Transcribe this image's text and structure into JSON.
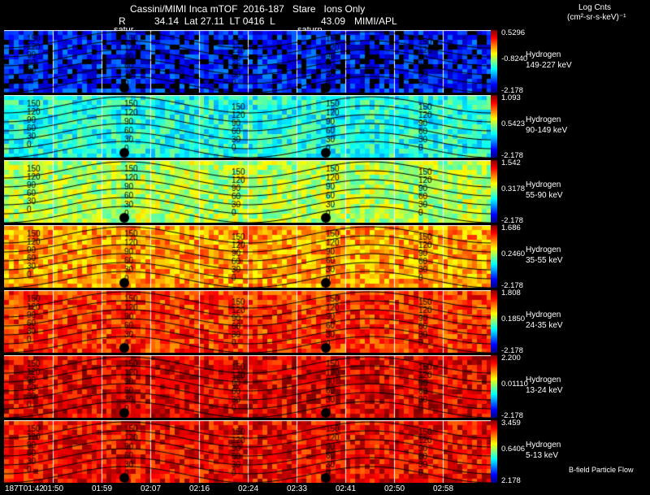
{
  "header": {
    "title": "Cassini/MIMI Inca mTOF  2016-187   Stare   Ions Only",
    "subtitle_r": "R",
    "subtitle_rest": "34.14  Lat 27.11  LT 0416  L",
    "subtitle_l": "43.09",
    "subtitle_inst": "MIMI/APL",
    "units_line1": "Log Cnts",
    "units_line2": "(cm²-sr-s-keV)⁻¹"
  },
  "markers": {
    "saturn1": "satur",
    "saturn2": "saturn"
  },
  "footer": {
    "flow_label": "B-field Particle Flow"
  },
  "time_labels": [
    "187T01:42",
    "01:50",
    "01:59",
    "02:07",
    "02:16",
    "02:24",
    "02:33",
    "02:41",
    "02:50",
    "02:58"
  ],
  "panels": [
    {
      "species": "Hydrogen",
      "energy": "149-227 keV",
      "cmax": "0.5296",
      "cmid": "-0.8240",
      "cmin": "-2.178"
    },
    {
      "species": "Hydrogen",
      "energy": "90-149 keV",
      "cmax": "1.093",
      "cmid": "0.5423",
      "cmin": "-2.178"
    },
    {
      "species": "Hydrogen",
      "energy": "55-90 keV",
      "cmax": "1.542",
      "cmid": "0.3178",
      "cmin": "-2.178"
    },
    {
      "species": "Hydrogen",
      "energy": "35-55 keV",
      "cmax": "1.686",
      "cmid": "0.2460",
      "cmin": "-2.178"
    },
    {
      "species": "Hydrogen",
      "energy": "24-35 keV",
      "cmax": "1.808",
      "cmid": "0.1850",
      "cmin": "-2.178"
    },
    {
      "species": "Hydrogen",
      "energy": "13-24 keV",
      "cmax": "2.200",
      "cmid": "0.01110",
      "cmin": "-2.178"
    },
    {
      "species": "Hydrogen",
      "energy": "5-13 keV",
      "cmax": "3.459",
      "cmid": "0.6406",
      "cmin": "2.178"
    }
  ],
  "contour_labels": [
    "150",
    "120",
    "90",
    "60",
    "30",
    "0"
  ],
  "chart_data": {
    "type": "heatmap",
    "title": "Cassini/MIMI Inca mTOF  2016-187   Stare   Ions Only",
    "x_tick_labels": [
      "187T01:42",
      "01:50",
      "01:59",
      "02:07",
      "02:16",
      "02:24",
      "02:33",
      "02:41",
      "02:50",
      "02:58"
    ],
    "colorbar_label": "Log Cnts (cm²-sr-s-keV)⁻¹",
    "panels": [
      {
        "name": "Hydrogen 149-227 keV",
        "cmin": -2.178,
        "cmid": -0.824,
        "cmax": 0.5296,
        "mean_level": 0.15
      },
      {
        "name": "Hydrogen 90-149 keV",
        "cmin": -2.178,
        "cmid": 0.5423,
        "cmax": 1.093,
        "mean_level": 0.4
      },
      {
        "name": "Hydrogen 55-90 keV",
        "cmin": -2.178,
        "cmid": 0.3178,
        "cmax": 1.542,
        "mean_level": 0.55
      },
      {
        "name": "Hydrogen 35-55 keV",
        "cmin": -2.178,
        "cmid": 0.246,
        "cmax": 1.686,
        "mean_level": 0.72
      },
      {
        "name": "Hydrogen 24-35 keV",
        "cmin": -2.178,
        "cmid": 0.185,
        "cmax": 1.808,
        "mean_level": 0.83
      },
      {
        "name": "Hydrogen 13-24 keV",
        "cmin": -2.178,
        "cmid": 0.0111,
        "cmax": 2.2,
        "mean_level": 0.9
      },
      {
        "name": "Hydrogen 5-13 keV",
        "cmin": 2.178,
        "cmid": 0.6406,
        "cmax": 3.459,
        "mean_level": 0.88
      }
    ],
    "pitch_angle_contours": [
      0,
      30,
      60,
      90,
      120,
      150
    ],
    "grid": true
  }
}
